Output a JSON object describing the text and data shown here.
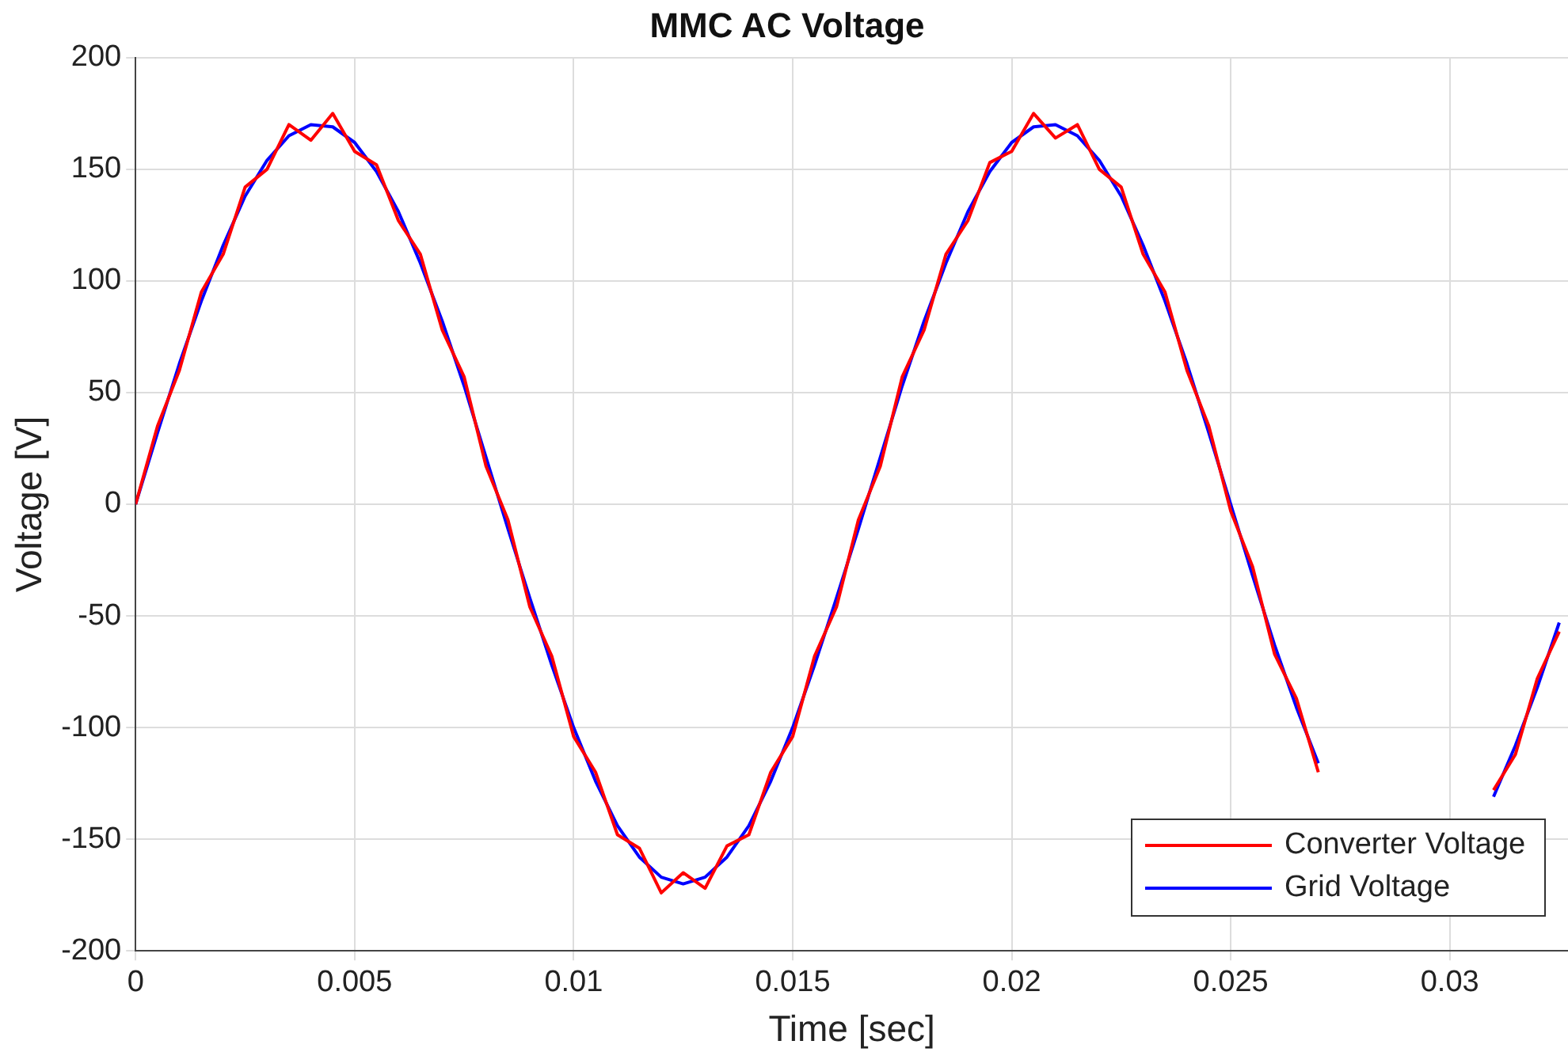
{
  "chart_data": {
    "type": "line",
    "title": "MMC AC Voltage",
    "xlabel": "Time [sec]",
    "ylabel": "Voltage [V]",
    "x": [
      0,
      0.0005,
      0.001,
      0.0015,
      0.002,
      0.0025,
      0.003,
      0.0035,
      0.004,
      0.0045,
      0.005,
      0.0055,
      0.006,
      0.0065,
      0.007,
      0.0075,
      0.008,
      0.0085,
      0.009,
      0.0095,
      0.01,
      0.0105,
      0.011,
      0.0115,
      0.012,
      0.0125,
      0.013,
      0.0135,
      0.014,
      0.0145,
      0.015,
      0.0155,
      0.016,
      0.0165,
      0.017,
      0.0175,
      0.018,
      0.0185,
      0.019,
      0.0195,
      0.02,
      0.0205,
      0.021,
      0.0215,
      0.022,
      0.0225,
      0.023,
      0.0235,
      0.024,
      0.0245,
      0.025,
      0.0255,
      0.026,
      0.0265,
      0.027,
      0.0275,
      0.028,
      0.0285,
      0.029,
      0.0295,
      0.03,
      0.0305,
      0.031,
      0.0315,
      0.032,
      0.0325
    ],
    "series": [
      {
        "name": "Converter Voltage",
        "color": "#ff0000",
        "values": [
          0,
          35,
          60,
          95,
          112,
          142,
          150,
          170,
          163,
          175,
          158,
          152,
          127,
          112,
          78,
          57,
          17,
          -7,
          -46,
          -68,
          -104,
          -120,
          -148,
          -154,
          -174,
          -165,
          -172,
          -153,
          -148,
          -120,
          -104,
          -68,
          -46,
          -7,
          17,
          57,
          78,
          112,
          127,
          153,
          158,
          175,
          164,
          170,
          150,
          142,
          112,
          95,
          60,
          35,
          -3,
          -28,
          -67,
          -87,
          -120,
          null,
          null,
          null,
          null,
          null,
          null,
          null,
          -128,
          -112,
          -78,
          -57
        ]
      },
      {
        "name": "Grid Voltage",
        "color": "#0000ff",
        "values": [
          0,
          32,
          63,
          91,
          116,
          138,
          154,
          165,
          170,
          169,
          162,
          149,
          131,
          108,
          82,
          53,
          21,
          -11,
          -42,
          -72,
          -100,
          -124,
          -144,
          -158,
          -167,
          -170,
          -167,
          -158,
          -144,
          -124,
          -100,
          -72,
          -42,
          -11,
          21,
          53,
          82,
          108,
          131,
          149,
          162,
          169,
          170,
          165,
          154,
          138,
          116,
          91,
          63,
          32,
          0,
          -32,
          -63,
          -91,
          -116,
          null,
          null,
          null,
          null,
          null,
          null,
          null,
          -131,
          -108,
          -82,
          -53
        ]
      }
    ],
    "xlim": [
      0,
      0.0327
    ],
    "xticks": [
      0,
      0.005,
      0.01,
      0.015,
      0.02,
      0.025,
      0.03
    ],
    "ylim": [
      -200,
      200
    ],
    "yticks": [
      -200,
      -150,
      -100,
      -50,
      0,
      50,
      100,
      150,
      200
    ],
    "grid": true,
    "legend": "bottom right",
    "marker": "none",
    "line_style": "solid"
  }
}
